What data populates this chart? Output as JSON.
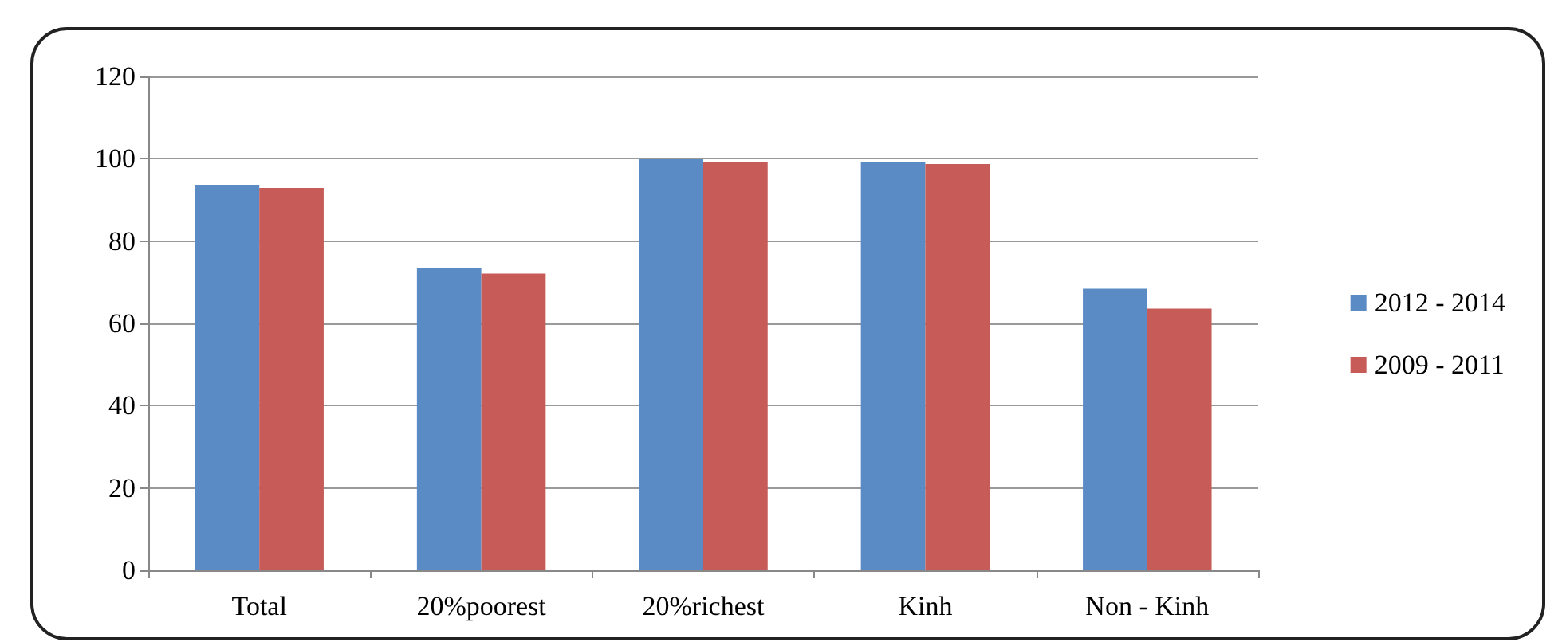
{
  "chart_data": {
    "type": "bar",
    "categories": [
      "Total",
      "20%poorest",
      "20%richest",
      "Kinh",
      "Non - Kinh"
    ],
    "series": [
      {
        "name": "2012 - 2014",
        "color": "#5b8bc5",
        "values": [
          93.7,
          73.4,
          100,
          99.1,
          68.4
        ]
      },
      {
        "name": "2009 - 2011",
        "color": "#c65b57",
        "values": [
          92.9,
          72.1,
          99.2,
          98.7,
          63.6
        ]
      }
    ],
    "ylim": [
      0,
      120
    ],
    "yticks": [
      0,
      20,
      40,
      60,
      80,
      100,
      120
    ],
    "grid": "y",
    "legend": "right"
  }
}
